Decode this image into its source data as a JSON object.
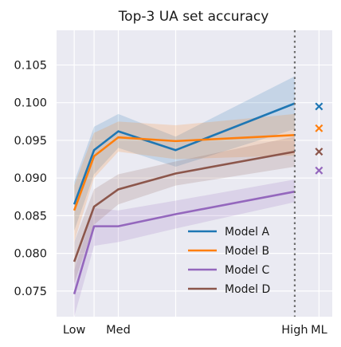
{
  "chart_data": {
    "type": "line",
    "title": "Top-3 UA set accuracy",
    "xlabel": "",
    "ylabel": "",
    "x_tick_labels": [
      {
        "x": 0,
        "label": "Low"
      },
      {
        "x": 1,
        "label": "Med"
      },
      {
        "x": 5,
        "label": "High"
      },
      {
        "x": 5.55,
        "label": "ML"
      }
    ],
    "x_vertical_grid": [
      0,
      0.45,
      1,
      2.3,
      5.55
    ],
    "x_reference_line": 5,
    "xlim": [
      -0.4,
      5.85
    ],
    "ylim": [
      0.0716,
      0.1096
    ],
    "yticks": [
      0.075,
      0.08,
      0.085,
      0.09,
      0.095,
      0.1,
      0.105
    ],
    "ytick_labels": [
      "0.075",
      "0.080",
      "0.085",
      "0.090",
      "0.095",
      "0.100",
      "0.105"
    ],
    "grid": true,
    "legend": {
      "placement": "lower-right"
    },
    "x": [
      0,
      0.45,
      1,
      2.3,
      5
    ],
    "series": [
      {
        "name": "Model A",
        "color": "#1f77b4",
        "values": [
          0.0865,
          0.0937,
          0.0962,
          0.0937,
          0.0999
        ],
        "band_low": [
          0.083,
          0.0905,
          0.094,
          0.0915,
          0.0965
        ],
        "band_high": [
          0.0895,
          0.0968,
          0.0985,
          0.0955,
          0.1035
        ],
        "ml_value": 0.0995
      },
      {
        "name": "Model B",
        "color": "#ff7f0e",
        "values": [
          0.0857,
          0.0929,
          0.0954,
          0.0949,
          0.0957
        ],
        "band_low": [
          0.0815,
          0.09,
          0.0935,
          0.0925,
          0.093
        ],
        "band_high": [
          0.089,
          0.096,
          0.0975,
          0.097,
          0.0985
        ],
        "ml_value": 0.0966
      },
      {
        "name": "Model C",
        "color": "#9467bd",
        "values": [
          0.0746,
          0.0836,
          0.0836,
          0.0852,
          0.0882
        ],
        "band_low": [
          0.0716,
          0.081,
          0.0815,
          0.0833,
          0.0868
        ],
        "band_high": [
          0.0778,
          0.086,
          0.0857,
          0.087,
          0.0898
        ],
        "ml_value": 0.091
      },
      {
        "name": "Model D",
        "color": "#8c564b",
        "values": [
          0.0789,
          0.0862,
          0.0885,
          0.0906,
          0.0935
        ],
        "band_low": [
          0.076,
          0.0838,
          0.0865,
          0.089,
          0.0915
        ],
        "band_high": [
          0.0815,
          0.0885,
          0.0905,
          0.0922,
          0.0955
        ],
        "ml_value": 0.0935
      }
    ]
  }
}
